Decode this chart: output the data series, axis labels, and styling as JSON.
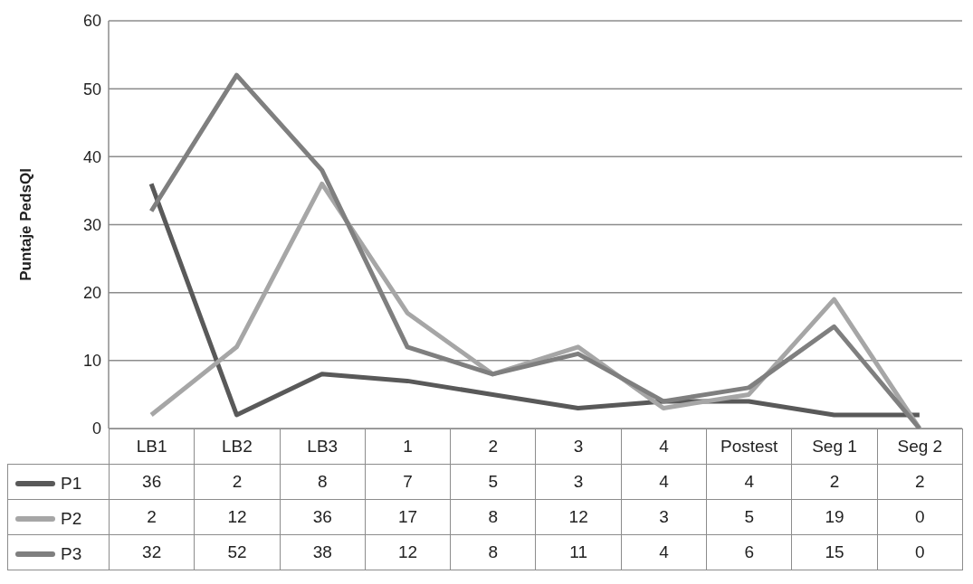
{
  "chart_data": {
    "type": "line",
    "ylabel": "Puntaje PedsQl",
    "categories": [
      "LB1",
      "LB2",
      "LB3",
      "1",
      "2",
      "3",
      "4",
      "Postest",
      "Seg 1",
      "Seg 2"
    ],
    "series": [
      {
        "name": "P1",
        "color": "#595959",
        "values": [
          36,
          2,
          8,
          7,
          5,
          3,
          4,
          4,
          2,
          2
        ]
      },
      {
        "name": "P2",
        "color": "#a6a6a6",
        "values": [
          2,
          12,
          36,
          17,
          8,
          12,
          3,
          5,
          19,
          0
        ]
      },
      {
        "name": "P3",
        "color": "#7f7f7f",
        "values": [
          32,
          52,
          38,
          12,
          8,
          11,
          4,
          6,
          15,
          0
        ]
      }
    ],
    "ylim": [
      0,
      60
    ],
    "yticks": [
      0,
      10,
      20,
      30,
      40,
      50,
      60
    ],
    "grid": "y",
    "legend": "bottom",
    "data_labels": true
  }
}
